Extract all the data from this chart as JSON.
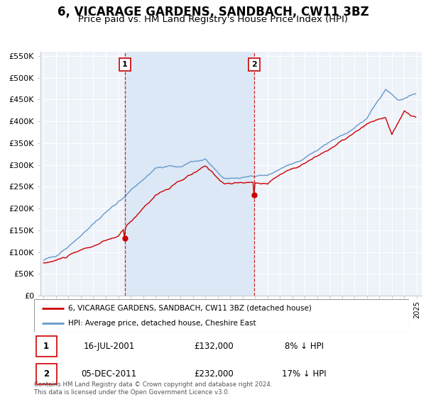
{
  "title": "6, VICARAGE GARDENS, SANDBACH, CW11 3BZ",
  "subtitle": "Price paid vs. HM Land Registry's House Price Index (HPI)",
  "ylim": [
    0,
    560000
  ],
  "yticks": [
    0,
    50000,
    100000,
    150000,
    200000,
    250000,
    300000,
    350000,
    400000,
    450000,
    500000,
    550000
  ],
  "ytick_labels": [
    "£0",
    "£50K",
    "£100K",
    "£150K",
    "£200K",
    "£250K",
    "£300K",
    "£350K",
    "£400K",
    "£450K",
    "£500K",
    "£550K"
  ],
  "xlim_start": 1994.75,
  "xlim_end": 2025.4,
  "transaction1_date": 2001.54,
  "transaction1_price": 132000,
  "transaction1_label": "1",
  "transaction1_display": "16-JUL-2001",
  "transaction1_amount": "£132,000",
  "transaction1_pct": "8% ↓ HPI",
  "transaction2_date": 2011.92,
  "transaction2_price": 232000,
  "transaction2_label": "2",
  "transaction2_display": "05-DEC-2011",
  "transaction2_amount": "£232,000",
  "transaction2_pct": "17% ↓ HPI",
  "price_color": "#cc0000",
  "hpi_color": "#6699cc",
  "shade_color": "#dce8f5",
  "background_color": "#eef2f9",
  "grid_color": "#ffffff",
  "title_fontsize": 12,
  "subtitle_fontsize": 9.5,
  "legend_label_price": "6, VICARAGE GARDENS, SANDBACH, CW11 3BZ (detached house)",
  "legend_label_hpi": "HPI: Average price, detached house, Cheshire East",
  "footer": "Contains HM Land Registry data © Crown copyright and database right 2024.\nThis data is licensed under the Open Government Licence v3.0."
}
